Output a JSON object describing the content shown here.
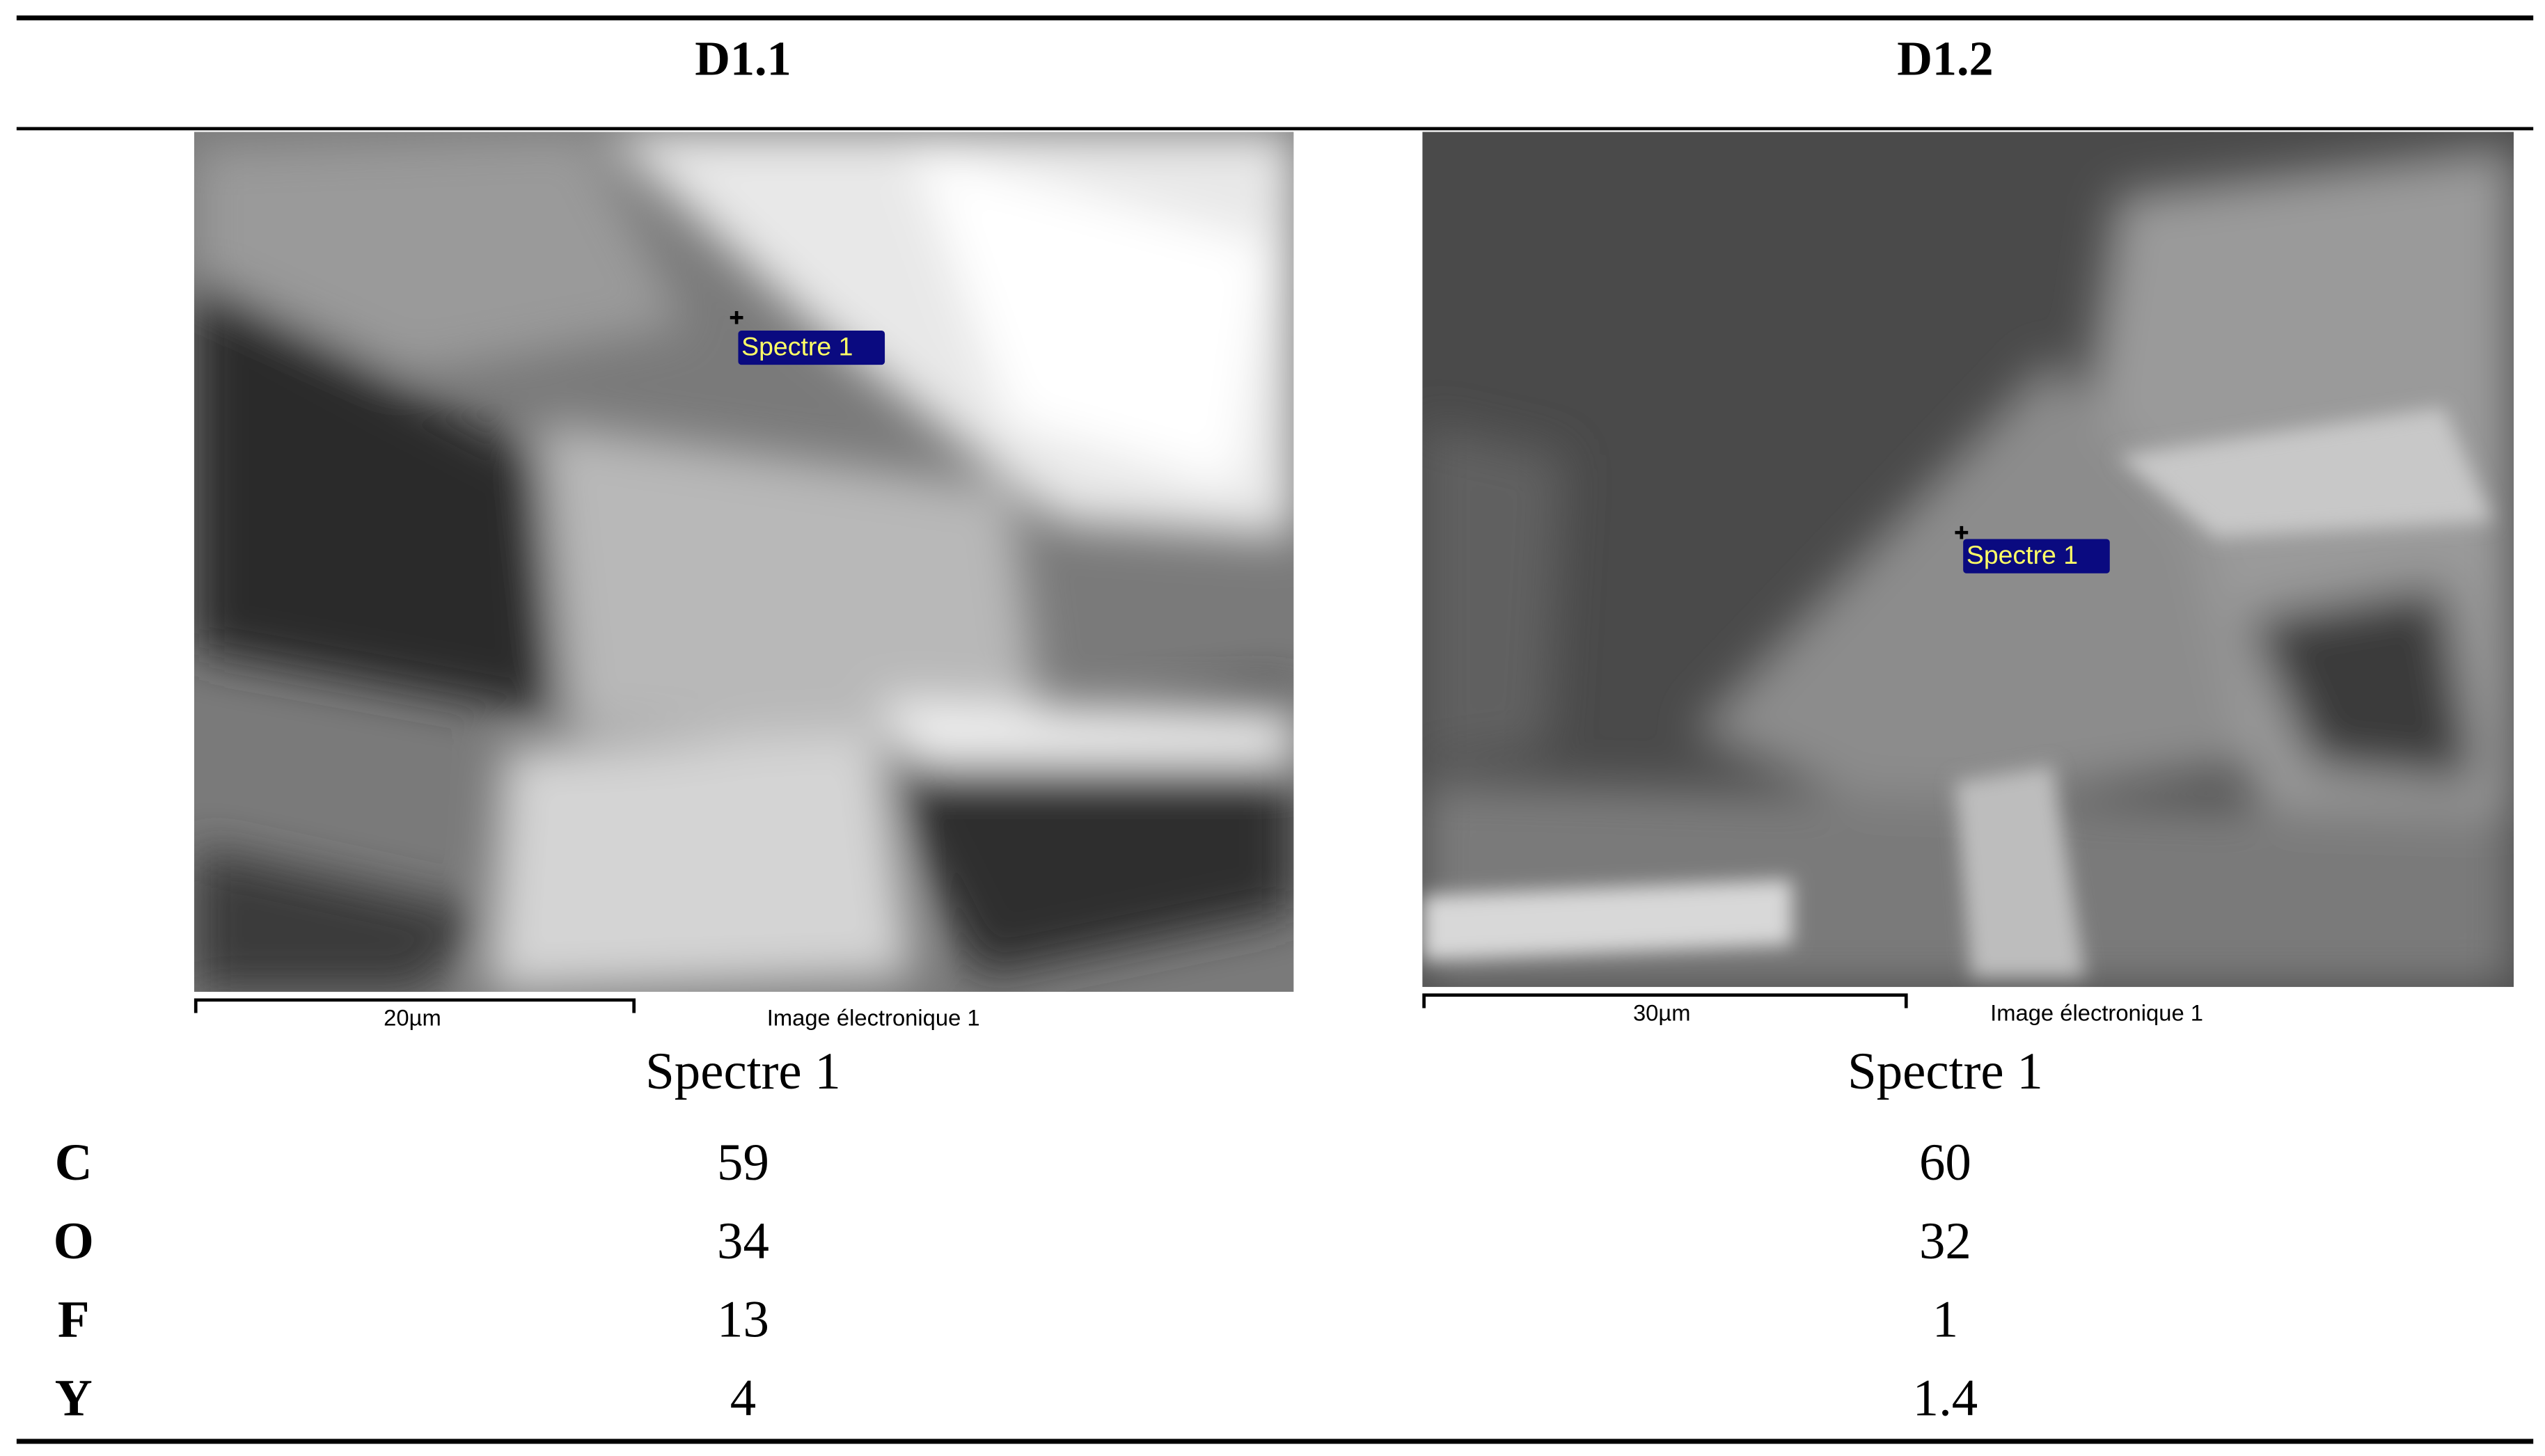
{
  "header": {
    "columns": [
      "D1.1",
      "D1.2"
    ]
  },
  "images": [
    {
      "marker_label": "Spectre 1",
      "scale_bar": "20µm",
      "caption": "Image électronique 1"
    },
    {
      "marker_label": "Spectre 1",
      "scale_bar": "30µm",
      "caption": "Image électronique 1"
    }
  ],
  "table": {
    "spectrum_labels": [
      "Spectre 1",
      "Spectre 1"
    ],
    "rows": [
      [
        "C",
        "59",
        "60"
      ],
      [
        "O",
        "34",
        "32"
      ],
      [
        "F",
        "13",
        "1"
      ],
      [
        "Y",
        "4",
        "1.4"
      ]
    ]
  }
}
